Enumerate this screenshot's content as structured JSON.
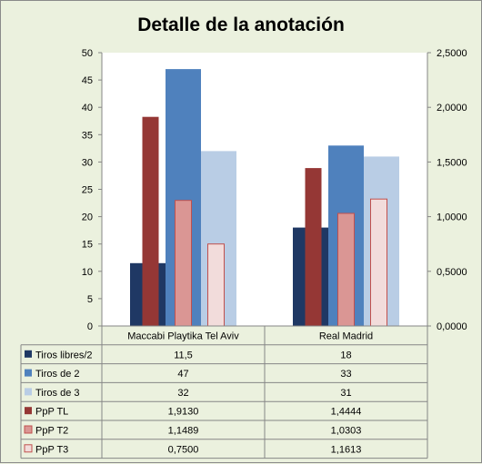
{
  "chart_data": {
    "type": "bar",
    "title": "Detalle de la anotación",
    "categories": [
      "Maccabi Playtika Tel Aviv",
      "Real Madrid"
    ],
    "y_left": {
      "range": [
        0,
        50
      ],
      "ticks": [
        "0",
        "5",
        "10",
        "15",
        "20",
        "25",
        "30",
        "35",
        "40",
        "45",
        "50"
      ]
    },
    "y_right": {
      "range": [
        0,
        2.5
      ],
      "ticks": [
        "0,0000",
        "0,5000",
        "1,0000",
        "1,5000",
        "2,0000",
        "2,5000"
      ]
    },
    "grid": false,
    "legend": "data-table-left",
    "series": [
      {
        "name": "Tiros libres/2",
        "axis": "left",
        "values": [
          11.5,
          18
        ],
        "display": [
          "11,5",
          "18"
        ],
        "color": "#1f3864"
      },
      {
        "name": "Tiros de 2",
        "axis": "left",
        "values": [
          47,
          33
        ],
        "display": [
          "47",
          "33"
        ],
        "color": "#4f81bd"
      },
      {
        "name": "Tiros de 3",
        "axis": "left",
        "values": [
          32,
          31
        ],
        "display": [
          "32",
          "31"
        ],
        "color": "#b9cde5"
      },
      {
        "name": "PpP TL",
        "axis": "right",
        "values": [
          1.913,
          1.4444
        ],
        "display": [
          "1,9130",
          "1,4444"
        ],
        "color": "#953735"
      },
      {
        "name": "PpP T2",
        "axis": "right",
        "values": [
          1.1489,
          1.0303
        ],
        "display": [
          "1,1489",
          "1,0303"
        ],
        "color": "#da9694"
      },
      {
        "name": "PpP T3",
        "axis": "right",
        "values": [
          0.75,
          1.1613
        ],
        "display": [
          "0,7500",
          "1,1613"
        ],
        "color": "#f2dcdb"
      }
    ]
  }
}
